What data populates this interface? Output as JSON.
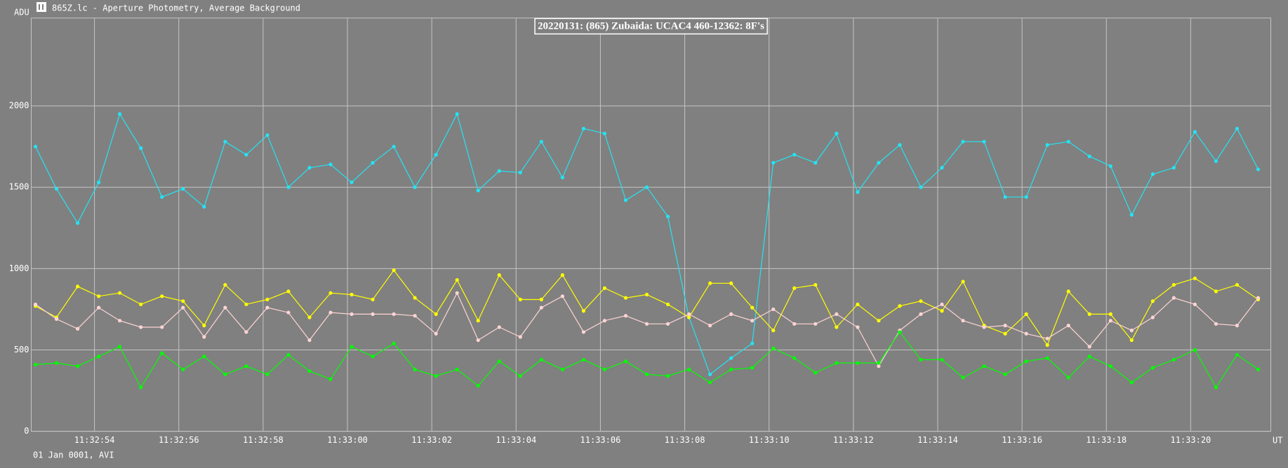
{
  "window_title": "865Z.lc - Aperture Photometry, Average Background",
  "chart_data": {
    "type": "line",
    "title": "20220131: (865) Zubaida: UCAC4 460-12362: 8F's",
    "y_label": "ADU",
    "x_label": "UT",
    "footer": "01 Jan 0001, AVI",
    "grid": true,
    "markers": true,
    "xlim": [
      41572.5,
      41601.9
    ],
    "ylim": [
      0,
      2540
    ],
    "yticks": [
      0,
      500,
      1000,
      1500,
      2000
    ],
    "xticks": [
      {
        "value": 41574,
        "label": "11:32:54"
      },
      {
        "value": 41576,
        "label": "11:32:56"
      },
      {
        "value": 41578,
        "label": "11:32:58"
      },
      {
        "value": 41580,
        "label": "11:33:00"
      },
      {
        "value": 41582,
        "label": "11:33:02"
      },
      {
        "value": 41584,
        "label": "11:33:04"
      },
      {
        "value": 41586,
        "label": "11:33:06"
      },
      {
        "value": 41588,
        "label": "11:33:08"
      },
      {
        "value": 41590,
        "label": "11:33:10"
      },
      {
        "value": 41592,
        "label": "11:33:12"
      },
      {
        "value": 41594,
        "label": "11:33:14"
      },
      {
        "value": 41596,
        "label": "11:33:16"
      },
      {
        "value": 41598,
        "label": "11:33:18"
      },
      {
        "value": 41600,
        "label": "11:33:20"
      }
    ],
    "x": [
      41572.6,
      41573.1,
      41573.6,
      41574.1,
      41574.6,
      41575.1,
      41575.6,
      41576.1,
      41576.6,
      41577.1,
      41577.6,
      41578.1,
      41578.6,
      41579.1,
      41579.6,
      41580.1,
      41580.6,
      41581.1,
      41581.6,
      41582.1,
      41582.6,
      41583.1,
      41583.6,
      41584.1,
      41584.6,
      41585.1,
      41585.6,
      41586.1,
      41586.6,
      41587.1,
      41587.6,
      41588.1,
      41588.6,
      41589.1,
      41589.6,
      41590.1,
      41590.6,
      41591.1,
      41591.6,
      41592.1,
      41592.6,
      41593.1,
      41593.6,
      41594.1,
      41594.6,
      41595.1,
      41595.6,
      41596.1,
      41596.6,
      41597.1,
      41597.6,
      41598.1,
      41598.6,
      41599.1,
      41599.6,
      41600.1,
      41600.6,
      41601.1,
      41601.6
    ],
    "series": [
      {
        "color": "#22e4f4",
        "values": [
          1750,
          1490,
          1280,
          1530,
          1950,
          1740,
          1440,
          1490,
          1380,
          1780,
          1700,
          1820,
          1500,
          1620,
          1640,
          1530,
          1650,
          1750,
          1500,
          1700,
          1950,
          1480,
          1600,
          1590,
          1780,
          1560,
          1860,
          1830,
          1420,
          1500,
          1320,
          700,
          350,
          450,
          540,
          1650,
          1700,
          1650,
          1830,
          1470,
          1650,
          1760,
          1500,
          1620,
          1780,
          1780,
          1440,
          1440,
          1760,
          1780,
          1690,
          1630,
          1330,
          1580,
          1620,
          1840,
          1660,
          1860,
          1610
        ]
      },
      {
        "color": "#ffff00",
        "values": [
          770,
          700,
          890,
          830,
          850,
          780,
          830,
          800,
          650,
          900,
          780,
          810,
          860,
          700,
          850,
          840,
          810,
          990,
          820,
          720,
          930,
          680,
          960,
          810,
          810,
          960,
          740,
          880,
          820,
          840,
          780,
          700,
          910,
          910,
          760,
          620,
          880,
          900,
          640,
          780,
          680,
          770,
          800,
          740,
          920,
          650,
          600,
          720,
          530,
          860,
          720,
          720,
          560,
          800,
          900,
          940,
          860,
          900,
          810
        ]
      },
      {
        "color": "#ffd4d4",
        "values": [
          780,
          690,
          630,
          760,
          680,
          640,
          640,
          760,
          580,
          760,
          610,
          760,
          730,
          560,
          730,
          720,
          720,
          720,
          710,
          600,
          850,
          560,
          640,
          580,
          760,
          830,
          610,
          680,
          710,
          660,
          660,
          720,
          650,
          720,
          680,
          750,
          660,
          660,
          720,
          640,
          400,
          620,
          720,
          780,
          680,
          640,
          650,
          600,
          570,
          650,
          520,
          680,
          620,
          700,
          820,
          780,
          660,
          650,
          820
        ]
      },
      {
        "color": "#00ff00",
        "values": [
          410,
          420,
          400,
          460,
          520,
          270,
          480,
          380,
          460,
          350,
          400,
          350,
          470,
          370,
          320,
          520,
          460,
          540,
          380,
          340,
          380,
          280,
          430,
          340,
          440,
          380,
          440,
          380,
          430,
          350,
          340,
          380,
          300,
          380,
          390,
          510,
          450,
          360,
          420,
          420,
          420,
          610,
          440,
          440,
          330,
          400,
          350,
          430,
          450,
          330,
          460,
          400,
          300,
          390,
          440,
          500,
          270,
          470,
          380
        ]
      }
    ]
  }
}
